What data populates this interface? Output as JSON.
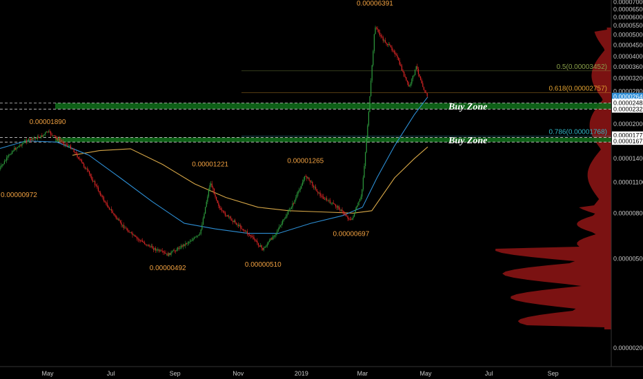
{
  "chart_data": {
    "type": "candlestick",
    "x_ticks": [
      "May",
      "Jul",
      "Sep",
      "Nov",
      "2019",
      "Mar",
      "May",
      "Jul",
      "Sep"
    ],
    "y_ticks": [
      "0.00000200",
      "0.00000500",
      "0.00000800",
      "0.00001100",
      "0.00001400",
      "0.00002000",
      "0.00002400",
      "0.00002800",
      "0.00003200",
      "0.00003600",
      "0.00004000",
      "0.00004500",
      "0.00005000",
      "0.00005500",
      "0.00006000",
      "0.00006500",
      "0.00007000"
    ],
    "y_scale": "log",
    "ylim": [
      2e-06,
      7e-05
    ],
    "price_path": [
      {
        "t": "2018-03-15",
        "v": 1.25e-05
      },
      {
        "t": "2018-03-28",
        "v": 1.52e-05
      },
      {
        "t": "2018-04-10",
        "v": 1.68e-05
      },
      {
        "t": "2018-04-25",
        "v": 1.76e-05
      },
      {
        "t": "2018-05-01",
        "v": 1.85e-05
      },
      {
        "t": "2018-05-10",
        "v": 1.72e-05
      },
      {
        "t": "2018-05-25",
        "v": 1.55e-05
      },
      {
        "t": "2018-06-10",
        "v": 1.2e-05
      },
      {
        "t": "2018-06-25",
        "v": 9e-06
      },
      {
        "t": "2018-07-10",
        "v": 7.2e-06
      },
      {
        "t": "2018-07-25",
        "v": 6.2e-06
      },
      {
        "t": "2018-08-10",
        "v": 5.6e-06
      },
      {
        "t": "2018-08-25",
        "v": 5.2e-06
      },
      {
        "t": "2018-09-10",
        "v": 5.8e-06
      },
      {
        "t": "2018-09-25",
        "v": 6.4e-06
      },
      {
        "t": "2018-10-05",
        "v": 1.1e-05
      },
      {
        "t": "2018-10-15",
        "v": 8.2e-06
      },
      {
        "t": "2018-10-30",
        "v": 7.2e-06
      },
      {
        "t": "2018-11-15",
        "v": 6.2e-06
      },
      {
        "t": "2018-11-25",
        "v": 5.5e-06
      },
      {
        "t": "2018-12-10",
        "v": 6.8e-06
      },
      {
        "t": "2018-12-25",
        "v": 9e-06
      },
      {
        "t": "2019-01-05",
        "v": 1.18e-05
      },
      {
        "t": "2019-01-20",
        "v": 9.5e-06
      },
      {
        "t": "2019-02-05",
        "v": 8.5e-06
      },
      {
        "t": "2019-02-18",
        "v": 7.4e-06
      },
      {
        "t": "2019-02-28",
        "v": 9.5e-06
      },
      {
        "t": "2019-03-03",
        "v": 1.35e-05
      },
      {
        "t": "2019-03-08",
        "v": 2.6e-05
      },
      {
        "t": "2019-03-13",
        "v": 5.5e-05
      },
      {
        "t": "2019-03-20",
        "v": 4.8e-05
      },
      {
        "t": "2019-04-01",
        "v": 4.2e-05
      },
      {
        "t": "2019-04-15",
        "v": 2.9e-05
      },
      {
        "t": "2019-04-22",
        "v": 3.6e-05
      },
      {
        "t": "2019-04-30",
        "v": 2.8e-05
      },
      {
        "t": "2019-05-03",
        "v": 2.64e-05
      }
    ],
    "ma_fast": [
      {
        "t": "2018-03-15",
        "v": 1.55e-05
      },
      {
        "t": "2018-04-10",
        "v": 1.68e-05
      },
      {
        "t": "2018-05-10",
        "v": 1.66e-05
      },
      {
        "t": "2018-06-10",
        "v": 1.45e-05
      },
      {
        "t": "2018-07-10",
        "v": 1.15e-05
      },
      {
        "t": "2018-08-10",
        "v": 9e-06
      },
      {
        "t": "2018-09-10",
        "v": 7.2e-06
      },
      {
        "t": "2018-10-10",
        "v": 6.8e-06
      },
      {
        "t": "2018-11-10",
        "v": 6.5e-06
      },
      {
        "t": "2018-12-10",
        "v": 6.5e-06
      },
      {
        "t": "2019-01-10",
        "v": 7.2e-06
      },
      {
        "t": "2019-02-10",
        "v": 7.8e-06
      },
      {
        "t": "2019-03-01",
        "v": 8.5e-06
      },
      {
        "t": "2019-03-15",
        "v": 1.15e-05
      },
      {
        "t": "2019-04-01",
        "v": 1.6e-05
      },
      {
        "t": "2019-04-20",
        "v": 2.2e-05
      },
      {
        "t": "2019-05-03",
        "v": 2.64e-05
      }
    ],
    "ma_slow": [
      {
        "t": "2018-05-25",
        "v": 1.45e-05
      },
      {
        "t": "2018-06-20",
        "v": 1.52e-05
      },
      {
        "t": "2018-07-20",
        "v": 1.55e-05
      },
      {
        "t": "2018-08-20",
        "v": 1.32e-05
      },
      {
        "t": "2018-09-20",
        "v": 1.08e-05
      },
      {
        "t": "2018-10-20",
        "v": 9.4e-06
      },
      {
        "t": "2018-11-20",
        "v": 8.5e-06
      },
      {
        "t": "2018-12-20",
        "v": 8.2e-06
      },
      {
        "t": "2019-01-20",
        "v": 8.1e-06
      },
      {
        "t": "2019-02-20",
        "v": 8e-06
      },
      {
        "t": "2019-03-10",
        "v": 8.2e-06
      },
      {
        "t": "2019-04-01",
        "v": 1.15e-05
      },
      {
        "t": "2019-04-20",
        "v": 1.4e-05
      },
      {
        "t": "2019-05-03",
        "v": 1.58e-05
      }
    ],
    "price_labels": [
      {
        "text": "0.00006391",
        "t": "2019-03-13",
        "v": 6.391e-05
      },
      {
        "text": "0.00001890",
        "t": "2018-05-01",
        "v": 1.89e-05
      },
      {
        "text": "0.00001221",
        "t": "2018-10-05",
        "v": 1.221e-05
      },
      {
        "text": "0.00001265",
        "t": "2019-01-05",
        "v": 1.265e-05
      },
      {
        "text": "0.00000972",
        "t": "2018-03-20",
        "v": 9.72e-06
      },
      {
        "text": "0.00000492",
        "t": "2018-08-25",
        "v": 4.92e-06
      },
      {
        "text": "0.00000510",
        "t": "2018-11-25",
        "v": 5.1e-06
      },
      {
        "text": "0.00000697",
        "t": "2019-02-18",
        "v": 6.97e-06
      }
    ],
    "fib_levels": [
      {
        "label": "0.5(0.00003452)",
        "v": 3.452e-05,
        "color": "#8aa04a"
      },
      {
        "label": "0.618(0.00002757)",
        "v": 2.757e-05,
        "color": "#e0a030"
      },
      {
        "label": "0.786(0.00001768)",
        "v": 1.768e-05,
        "color": "#30b8c8"
      }
    ],
    "zones": [
      {
        "label": "Buy Zone",
        "top": 2.48e-05,
        "bottom": 2.33e-05
      },
      {
        "label": "Buy Zone",
        "top": 1.74e-05,
        "bottom": 1.66e-05
      }
    ],
    "axis_badges": [
      {
        "text": "0.00002640",
        "v": 2.64e-05,
        "bg": "#2f8fd8",
        "fg": "#ffffff"
      },
      {
        "text": "0.00002482",
        "v": 2.482e-05,
        "bg": "#ffffff",
        "fg": "#000000"
      },
      {
        "text": "0.00002328",
        "v": 2.328e-05,
        "bg": "#ffffff",
        "fg": "#000000"
      },
      {
        "text": "0.00001775",
        "v": 1.775e-05,
        "bg": "#ffffff",
        "fg": "#000000"
      },
      {
        "text": "0.00001672",
        "v": 1.672e-05,
        "bg": "#ffffff",
        "fg": "#000000"
      }
    ],
    "colors": {
      "background": "#000000",
      "up": "#2e9e3e",
      "down": "#e02626",
      "ma_fast": "#2d8fd5",
      "ma_slow": "#d8a848",
      "zone": "#0f6a1a",
      "volume_profile": "#e02020"
    }
  }
}
